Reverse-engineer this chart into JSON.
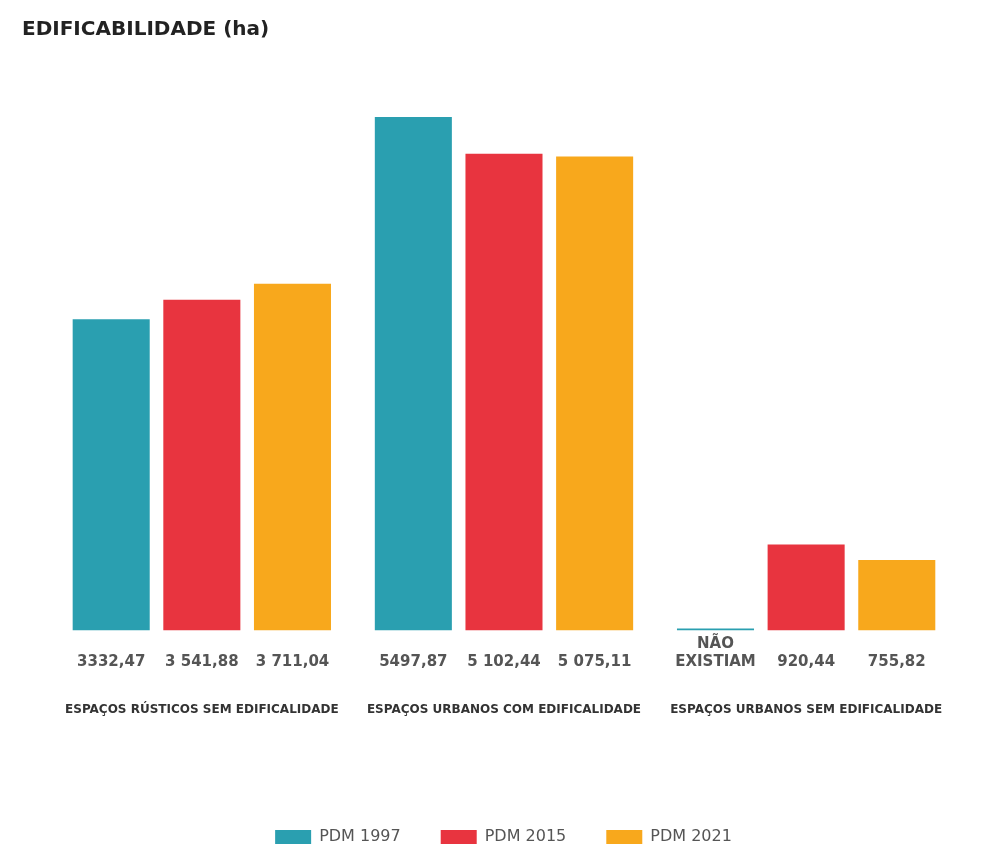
{
  "chart_data": {
    "type": "bar",
    "title": "EDIFICABILIDADE (ha)",
    "categories": [
      "ESPAÇOS RÚSTICOS SEM EDIFICALIDADE",
      "ESPAÇOS URBANOS COM EDIFICALIDADE",
      "ESPAÇOS URBANOS SEM EDIFICALIDADE"
    ],
    "series": [
      {
        "name": "PDM 1997",
        "color": "#2a9fb0",
        "values": [
          3332.47,
          5497.87,
          0
        ],
        "value_labels": [
          "3332,47",
          "5497,87",
          "NÃO EXISTIAM"
        ]
      },
      {
        "name": "PDM 2015",
        "color": "#e8343f",
        "values": [
          3541.88,
          5102.44,
          920.44
        ],
        "value_labels": [
          "3 541,88",
          "5 102,44",
          "920,44"
        ]
      },
      {
        "name": "PDM 2021",
        "color": "#f8a81c",
        "values": [
          3711.04,
          5075.11,
          755.82
        ],
        "value_labels": [
          "3 711,04",
          "5 075,11",
          "755,82"
        ]
      }
    ],
    "legend": "bottom",
    "grid": false
  }
}
